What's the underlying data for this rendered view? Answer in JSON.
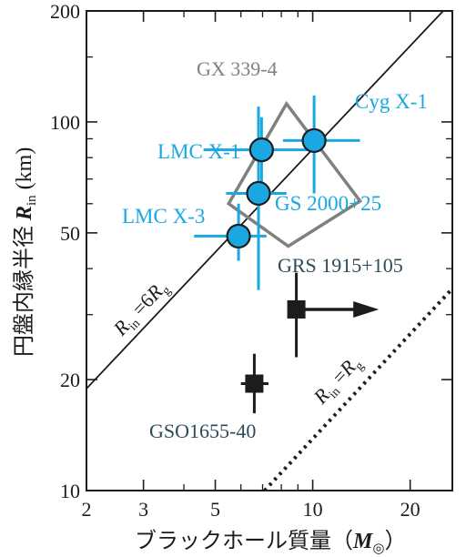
{
  "chart_data": {
    "type": "scatter",
    "x_scale": "log",
    "y_scale": "log",
    "xlim": [
      2,
      27
    ],
    "ylim": [
      10,
      200
    ],
    "xlabel": "ブラックホール質量（M◎）",
    "ylabel": "円盤内縁半径 Rin (km)",
    "xticks": [
      2,
      3,
      5,
      10,
      20
    ],
    "xtick_labels": [
      "2",
      "3",
      "5",
      "10",
      "20"
    ],
    "yticks": [
      10,
      20,
      50,
      100,
      200
    ],
    "ytick_labels": [
      "10",
      "20",
      "50",
      "100",
      "200"
    ],
    "grid": false,
    "colors": {
      "cyan": "#19a8e0",
      "point_fill": "#1ba7e2",
      "gray": "#808080",
      "dark": "#1c1c1c",
      "label_dark": "#2d4a5a"
    },
    "series": [
      {
        "kind": "cyan-points",
        "points": [
          {
            "name": "Cyg X-1",
            "x": 10.1,
            "y": 89,
            "xerr": [
              8.1,
              14
            ],
            "yerr": [
              64,
              118
            ]
          },
          {
            "name": "LMC X-1",
            "x": 6.95,
            "y": 84,
            "xerr": [
              4.6,
              10
            ],
            "yerr": [
              64,
              103
            ]
          },
          {
            "name": "GS 2000+25",
            "x": 6.8,
            "y": 64,
            "xerr": [
              5.4,
              8.3
            ],
            "yerr": [
              35,
              110
            ]
          },
          {
            "name": "LMC X-3",
            "x": 5.9,
            "y": 49,
            "xerr": [
              4.3,
              7.2
            ],
            "yerr": [
              42,
              60
            ]
          }
        ]
      },
      {
        "kind": "black-points",
        "points": [
          {
            "name": "GRS 1915+105",
            "x": 8.9,
            "y": 31,
            "yerr": [
              23,
              39
            ],
            "lower_limit": true
          },
          {
            "name": "GSO1655-40",
            "x": 6.6,
            "y": 19.5,
            "yerr": [
              16.2,
              23.5
            ],
            "xerr": [
              6.0,
              7.3
            ]
          }
        ]
      }
    ],
    "region": {
      "name": "GX 339-4",
      "polygon": [
        [
          8.3,
          112
        ],
        [
          5.5,
          60
        ],
        [
          8.4,
          46
        ],
        [
          14,
          61
        ]
      ]
    },
    "lines": [
      {
        "label_main": "R",
        "label_sub1": "in",
        "label_mid": " =6",
        "label_main2": "R",
        "label_sub2": "g",
        "style": "solid",
        "points": [
          [
            2.0,
            18.9
          ],
          [
            25.3,
            200
          ]
        ]
      },
      {
        "label_main": "R",
        "label_sub1": "in",
        "label_mid": " =",
        "label_main2": "R",
        "label_sub2": "g",
        "style": "dotted",
        "points": [
          [
            7.1,
            10
          ],
          [
            27,
            35.3
          ]
        ]
      }
    ],
    "arrow_to_x": 16
  }
}
